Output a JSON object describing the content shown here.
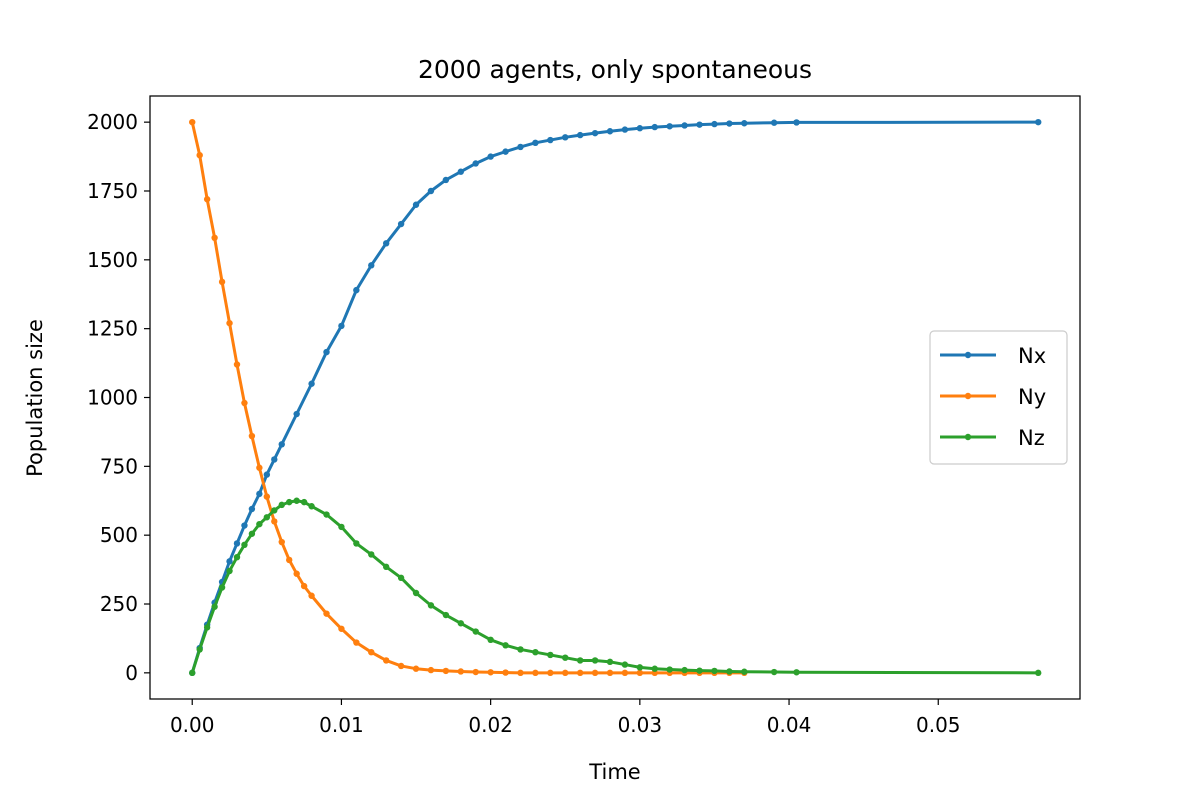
{
  "chart_data": {
    "type": "line",
    "title": "2000 agents, only spontaneous",
    "xlabel": "Time",
    "ylabel": "Population size",
    "xlim": [
      -0.00283,
      0.0595
    ],
    "ylim": [
      -95,
      2095
    ],
    "xticks": [
      0.0,
      0.01,
      0.02,
      0.03,
      0.04,
      0.05
    ],
    "xtick_labels": [
      "0.00",
      "0.01",
      "0.02",
      "0.03",
      "0.04",
      "0.05"
    ],
    "yticks": [
      0,
      250,
      500,
      750,
      1000,
      1250,
      1500,
      1750,
      2000
    ],
    "ytick_labels": [
      "0",
      "250",
      "500",
      "750",
      "1000",
      "1250",
      "1500",
      "1750",
      "2000"
    ],
    "grid": false,
    "legend": {
      "position": "center-right",
      "entries": [
        "Nx",
        "Ny",
        "Nz"
      ]
    },
    "series": [
      {
        "name": "Nx",
        "color": "#1f77b4",
        "x": [
          0,
          0.0005,
          0.001,
          0.0015,
          0.002,
          0.0025,
          0.003,
          0.0035,
          0.004,
          0.0045,
          0.005,
          0.0055,
          0.006,
          0.007,
          0.008,
          0.009,
          0.01,
          0.011,
          0.012,
          0.013,
          0.014,
          0.015,
          0.016,
          0.017,
          0.018,
          0.019,
          0.02,
          0.021,
          0.022,
          0.023,
          0.024,
          0.025,
          0.026,
          0.027,
          0.028,
          0.029,
          0.03,
          0.031,
          0.032,
          0.033,
          0.034,
          0.035,
          0.036,
          0.037,
          0.039,
          0.0405,
          0.0567
        ],
        "y": [
          0,
          90,
          175,
          255,
          330,
          405,
          470,
          535,
          595,
          650,
          720,
          775,
          830,
          940,
          1050,
          1165,
          1260,
          1390,
          1480,
          1560,
          1630,
          1700,
          1750,
          1790,
          1820,
          1850,
          1875,
          1893,
          1910,
          1925,
          1935,
          1945,
          1953,
          1960,
          1967,
          1973,
          1978,
          1982,
          1985,
          1988,
          1991,
          1993,
          1995,
          1996,
          1998,
          1999,
          2000
        ]
      },
      {
        "name": "Ny",
        "color": "#ff7f0e",
        "x": [
          0,
          0.0005,
          0.001,
          0.0015,
          0.002,
          0.0025,
          0.003,
          0.0035,
          0.004,
          0.0045,
          0.005,
          0.0055,
          0.006,
          0.0065,
          0.007,
          0.0075,
          0.008,
          0.009,
          0.01,
          0.011,
          0.012,
          0.013,
          0.014,
          0.015,
          0.016,
          0.017,
          0.018,
          0.019,
          0.02,
          0.021,
          0.022,
          0.023,
          0.024,
          0.025,
          0.026,
          0.027,
          0.028,
          0.029,
          0.03,
          0.031,
          0.032,
          0.033,
          0.034,
          0.035,
          0.036,
          0.037
        ],
        "y": [
          2000,
          1880,
          1720,
          1580,
          1420,
          1270,
          1120,
          980,
          860,
          745,
          640,
          550,
          475,
          410,
          360,
          315,
          280,
          215,
          160,
          110,
          75,
          45,
          25,
          15,
          10,
          7,
          5,
          3,
          2,
          1,
          0,
          0,
          0,
          0,
          0,
          0,
          0,
          0,
          0,
          0,
          0,
          0,
          0,
          0,
          0,
          0
        ]
      },
      {
        "name": "Nz",
        "color": "#2ca02c",
        "x": [
          0,
          0.0005,
          0.001,
          0.0015,
          0.002,
          0.0025,
          0.003,
          0.0035,
          0.004,
          0.0045,
          0.005,
          0.0055,
          0.006,
          0.0065,
          0.007,
          0.0075,
          0.008,
          0.009,
          0.01,
          0.011,
          0.012,
          0.013,
          0.014,
          0.015,
          0.016,
          0.017,
          0.018,
          0.019,
          0.02,
          0.021,
          0.022,
          0.023,
          0.024,
          0.025,
          0.026,
          0.027,
          0.028,
          0.029,
          0.03,
          0.031,
          0.032,
          0.033,
          0.034,
          0.035,
          0.036,
          0.037,
          0.039,
          0.0405,
          0.0567
        ],
        "y": [
          0,
          85,
          165,
          240,
          310,
          370,
          420,
          465,
          505,
          540,
          565,
          590,
          610,
          620,
          625,
          620,
          605,
          575,
          530,
          470,
          430,
          385,
          345,
          290,
          245,
          210,
          180,
          150,
          120,
          100,
          85,
          75,
          65,
          55,
          45,
          45,
          40,
          30,
          20,
          15,
          12,
          10,
          8,
          7,
          5,
          4,
          3,
          2,
          0
        ]
      }
    ]
  }
}
